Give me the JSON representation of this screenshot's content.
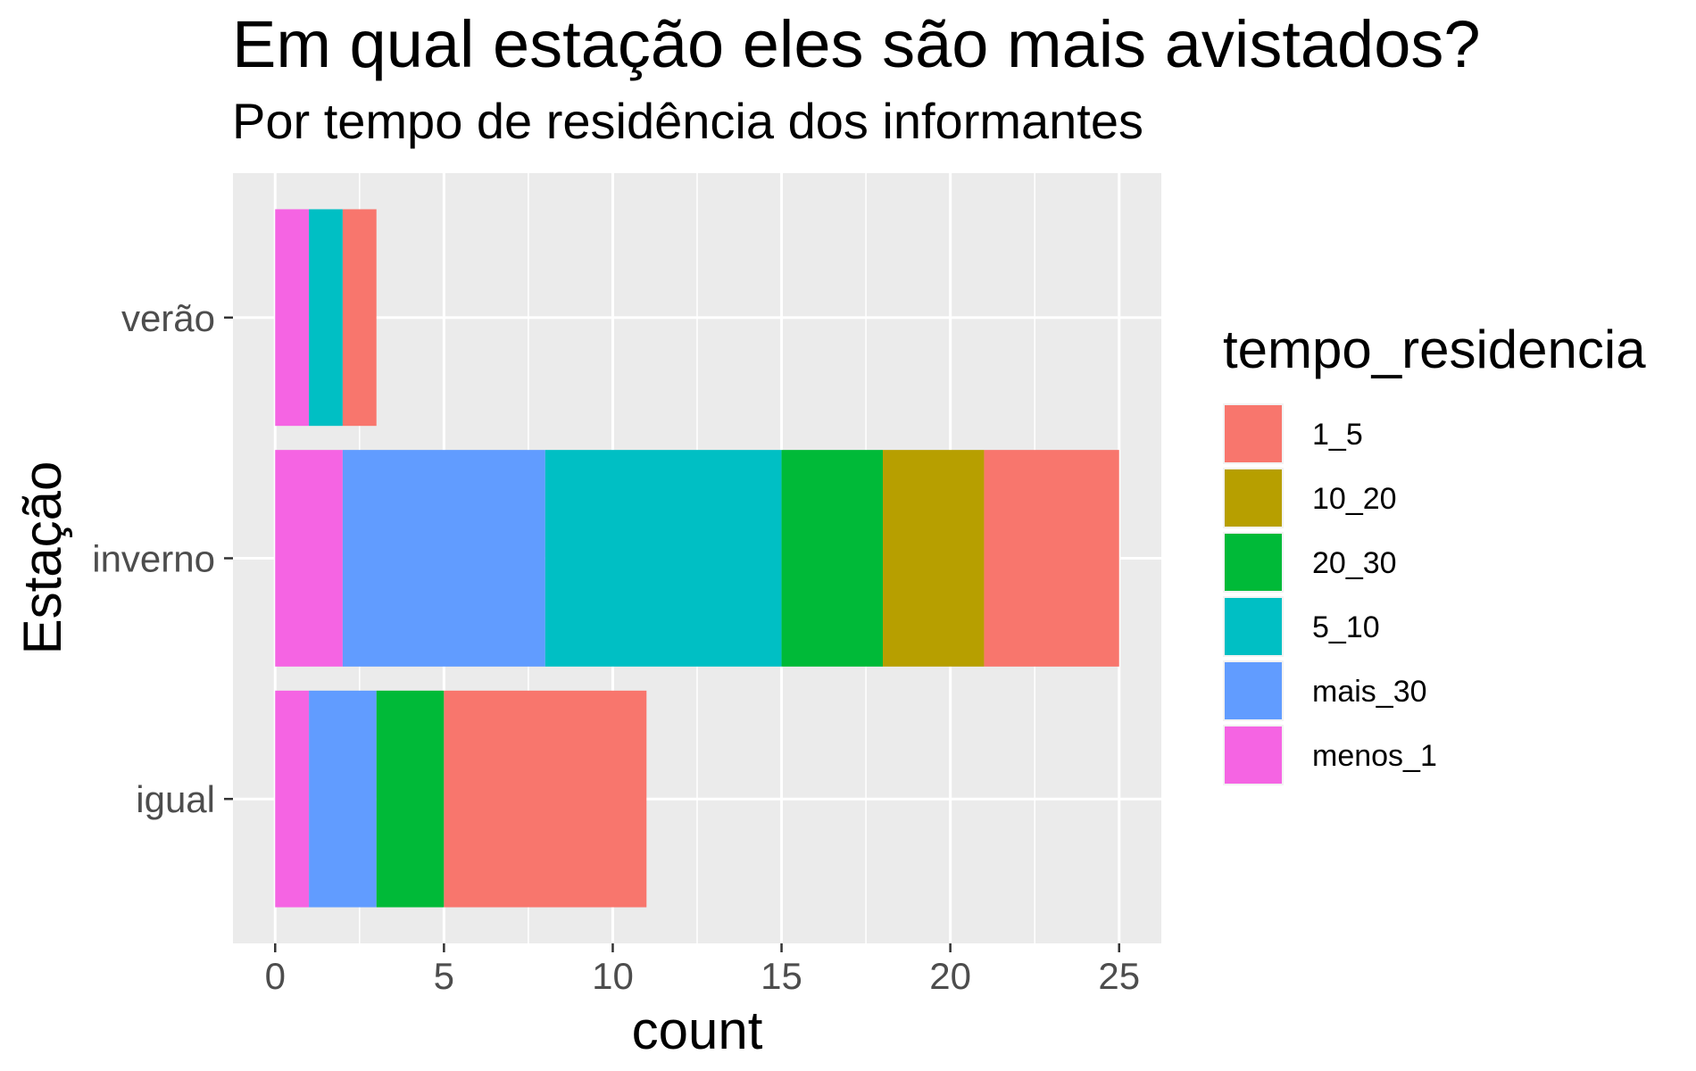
{
  "chart_data": {
    "type": "bar",
    "orientation": "horizontal",
    "stacked": true,
    "title": "Em qual estação eles são mais avistados?",
    "subtitle": "Por tempo de residência dos informantes",
    "xlabel": "count",
    "ylabel": "Estação",
    "xlim": [
      -1.25,
      26.25
    ],
    "xticks": [
      0,
      5,
      10,
      15,
      20,
      25
    ],
    "grid": true,
    "categories": [
      "igual",
      "inverno",
      "verão"
    ],
    "legend": {
      "title": "tempo_residencia",
      "position": "right"
    },
    "series": [
      {
        "name": "1_5",
        "color": "#F8766D",
        "values": [
          6,
          4,
          1
        ]
      },
      {
        "name": "10_20",
        "color": "#B79F00",
        "values": [
          0,
          3,
          0
        ]
      },
      {
        "name": "20_30",
        "color": "#00BA38",
        "values": [
          2,
          3,
          0
        ]
      },
      {
        "name": "5_10",
        "color": "#00BFC4",
        "values": [
          0,
          7,
          1
        ]
      },
      {
        "name": "mais_30",
        "color": "#619CFF",
        "values": [
          2,
          6,
          0
        ]
      },
      {
        "name": "menos_1",
        "color": "#F564E3",
        "values": [
          1,
          2,
          1
        ]
      }
    ]
  }
}
